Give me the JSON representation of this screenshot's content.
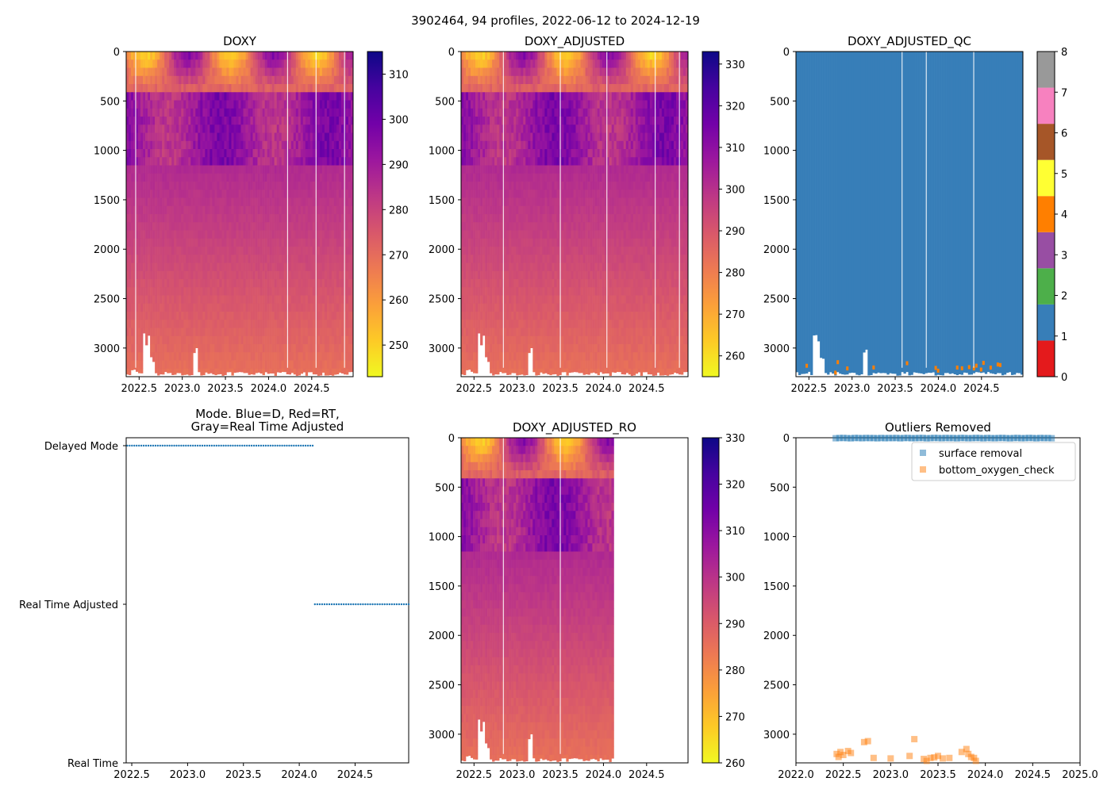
{
  "figure_title": "3902464, 94 profiles, 2022-06-12 to 2024-12-19",
  "chart_data": [
    {
      "id": "doxy",
      "type": "heatmap",
      "title": "DOXY",
      "x_ticks": [
        "2022.5",
        "2023.0",
        "2023.5",
        "2024.0",
        "2024.5"
      ],
      "x_tick_values": [
        2022.5,
        2023.0,
        2023.5,
        2024.0,
        2024.5
      ],
      "xlim": [
        2022.35,
        2024.98
      ],
      "y_ticks": [
        "0",
        "500",
        "1000",
        "1500",
        "2000",
        "2500",
        "3000"
      ],
      "y_tick_values": [
        0,
        500,
        1000,
        1500,
        2000,
        2500,
        3000
      ],
      "ylim": [
        3290,
        0
      ],
      "colormap": "plasma_r",
      "colorbar_ticks": [
        "250",
        "260",
        "270",
        "280",
        "290",
        "300",
        "310"
      ],
      "colorbar_tick_values": [
        250,
        260,
        270,
        280,
        290,
        300,
        310
      ],
      "colorbar_range": [
        243,
        315
      ],
      "data_end": 2024.98,
      "gap_years": [
        2022.46,
        2024.22,
        2024.55,
        2024.88
      ]
    },
    {
      "id": "doxy_adjusted",
      "type": "heatmap",
      "title": "DOXY_ADJUSTED",
      "x_ticks": [
        "2022.5",
        "2023.0",
        "2023.5",
        "2024.0",
        "2024.5"
      ],
      "x_tick_values": [
        2022.5,
        2023.0,
        2023.5,
        2024.0,
        2024.5
      ],
      "xlim": [
        2022.35,
        2024.98
      ],
      "y_ticks": [
        "0",
        "500",
        "1000",
        "1500",
        "2000",
        "2500",
        "3000"
      ],
      "y_tick_values": [
        0,
        500,
        1000,
        1500,
        2000,
        2500,
        3000
      ],
      "ylim": [
        3290,
        0
      ],
      "colormap": "plasma_r",
      "colorbar_ticks": [
        "260",
        "270",
        "280",
        "290",
        "300",
        "310",
        "320",
        "330"
      ],
      "colorbar_tick_values": [
        260,
        270,
        280,
        290,
        300,
        310,
        320,
        330
      ],
      "colorbar_range": [
        255,
        333
      ],
      "data_end": 2024.98,
      "gap_years": [
        2022.84,
        2023.5,
        2024.04,
        2024.6,
        2024.88
      ]
    },
    {
      "id": "doxy_adjusted_qc",
      "type": "heatmap",
      "title": "DOXY_ADJUSTED_QC",
      "x_ticks": [
        "2022.5",
        "2023.0",
        "2023.5",
        "2024.0",
        "2024.5"
      ],
      "x_tick_values": [
        2022.5,
        2023.0,
        2023.5,
        2024.0,
        2024.5
      ],
      "xlim": [
        2022.35,
        2024.98
      ],
      "y_ticks": [
        "0",
        "500",
        "1000",
        "1500",
        "2000",
        "2500",
        "3000"
      ],
      "y_tick_values": [
        0,
        500,
        1000,
        1500,
        2000,
        2500,
        3000
      ],
      "ylim": [
        3290,
        0
      ],
      "qc_colors": [
        "#e41a1c",
        "#377eb8",
        "#4daf4a",
        "#984ea3",
        "#ff7f00",
        "#ffff33",
        "#a65628",
        "#f781bf",
        "#999999"
      ],
      "colorbar_ticks": [
        "0",
        "1",
        "2",
        "3",
        "4",
        "5",
        "6",
        "7",
        "8"
      ],
      "colorbar_tick_values": [
        0,
        1,
        2,
        3,
        4,
        5,
        6,
        7,
        8
      ],
      "colorbar_range": [
        0,
        8
      ],
      "dominant_flag": 1,
      "gap_years": [
        2023.58,
        2023.86,
        2024.41
      ]
    },
    {
      "id": "mode",
      "type": "scatter",
      "title_lines": [
        "Mode. Blue=D, Red=RT,",
        "Gray=Real Time Adjusted"
      ],
      "x_ticks": [
        "2022.5",
        "2023.0",
        "2023.5",
        "2024.0",
        "2024.5"
      ],
      "x_tick_values": [
        2022.5,
        2023.0,
        2023.5,
        2024.0,
        2024.5
      ],
      "xlim": [
        2022.45,
        2024.98
      ],
      "y_ticks": [
        "Delayed Mode",
        "Real Time Adjusted",
        "Real Time"
      ],
      "y_tick_values": [
        2,
        1,
        0
      ],
      "ylim": [
        0,
        2.05
      ],
      "series": [
        {
          "name": "Delayed Mode",
          "level": 2,
          "x_range": [
            2022.46,
            2024.12
          ],
          "count": 80
        },
        {
          "name": "Real Time Adjusted",
          "level": 1,
          "x_range": [
            2024.14,
            2024.98
          ],
          "count": 40
        }
      ],
      "color": "#1f77b4"
    },
    {
      "id": "doxy_adjusted_ro",
      "type": "heatmap",
      "title": "DOXY_ADJUSTED_RO",
      "x_ticks": [
        "2022.5",
        "2023.0",
        "2023.5",
        "2024.0",
        "2024.5"
      ],
      "x_tick_values": [
        2022.5,
        2023.0,
        2023.5,
        2024.0,
        2024.5
      ],
      "xlim": [
        2022.35,
        2024.98
      ],
      "y_ticks": [
        "0",
        "500",
        "1000",
        "1500",
        "2000",
        "2500",
        "3000"
      ],
      "y_tick_values": [
        0,
        500,
        1000,
        1500,
        2000,
        2500,
        3000
      ],
      "ylim": [
        3290,
        0
      ],
      "colormap": "plasma_r",
      "colorbar_ticks": [
        "260",
        "270",
        "280",
        "290",
        "300",
        "310",
        "320",
        "330"
      ],
      "colorbar_tick_values": [
        260,
        270,
        280,
        290,
        300,
        310,
        320,
        330
      ],
      "colorbar_range": [
        260,
        330
      ],
      "data_end": 2024.12,
      "gap_years": [
        2022.84,
        2023.5
      ]
    },
    {
      "id": "outliers",
      "type": "scatter",
      "title": "Outliers Removed",
      "x_ticks": [
        "2022.0",
        "2022.5",
        "2023.0",
        "2023.5",
        "2024.0",
        "2024.5",
        "2025.0"
      ],
      "x_tick_values": [
        2022.0,
        2022.5,
        2023.0,
        2023.5,
        2024.0,
        2024.5,
        2025.0
      ],
      "xlim": [
        2022.0,
        2025.0
      ],
      "y_ticks": [
        "0",
        "500",
        "1000",
        "1500",
        "2000",
        "2500",
        "3000"
      ],
      "y_tick_values": [
        0,
        500,
        1000,
        1500,
        2000,
        2500,
        3000
      ],
      "ylim": [
        3290,
        0
      ],
      "legend": [
        "surface removal",
        "bottom_oxygen_check"
      ],
      "legend_position": "top-right",
      "series": [
        {
          "name": "surface removal",
          "color": "#1f77b4",
          "x": [
            2022.42,
            2022.46,
            2022.5,
            2022.54,
            2022.58,
            2022.62,
            2022.66,
            2022.7,
            2022.74,
            2022.78,
            2022.82,
            2022.86,
            2022.9,
            2022.94,
            2022.98,
            2023.02,
            2023.06,
            2023.1,
            2023.14,
            2023.18,
            2023.22,
            2023.26,
            2023.3,
            2023.34,
            2023.38,
            2023.42,
            2023.46,
            2023.5,
            2023.54,
            2023.58,
            2023.62,
            2023.66,
            2023.7,
            2023.74,
            2023.78,
            2023.82,
            2023.86,
            2023.9,
            2023.94,
            2023.98,
            2024.02,
            2024.06,
            2024.1,
            2024.14,
            2024.18,
            2024.22,
            2024.26,
            2024.3,
            2024.34,
            2024.38,
            2024.42,
            2024.46,
            2024.5,
            2024.54,
            2024.58,
            2024.62,
            2024.66,
            2024.7
          ],
          "y": [
            5,
            3,
            2,
            4,
            6,
            2,
            3,
            5,
            2,
            4,
            3,
            6,
            2,
            5,
            3,
            4,
            2,
            6,
            3,
            2,
            5,
            4,
            3,
            2,
            6,
            4,
            2,
            3,
            5,
            2,
            4,
            3,
            6,
            2,
            3,
            5,
            4,
            2,
            3,
            6,
            2,
            4,
            5,
            3,
            2,
            4,
            6,
            3,
            2,
            5,
            4,
            2,
            3,
            6,
            2,
            4,
            3,
            5
          ]
        },
        {
          "name": "bottom_oxygen_check",
          "color": "#ff7f0e",
          "x": [
            2022.43,
            2022.45,
            2022.47,
            2022.5,
            2022.55,
            2022.58,
            2022.72,
            2022.76,
            2022.82,
            2023.0,
            2023.2,
            2023.25,
            2023.35,
            2023.38,
            2023.42,
            2023.46,
            2023.5,
            2023.55,
            2023.62,
            2023.75,
            2023.8,
            2023.82,
            2023.85,
            2023.88,
            2023.9
          ],
          "y": [
            3200,
            3230,
            3180,
            3210,
            3170,
            3190,
            3080,
            3070,
            3240,
            3245,
            3220,
            3050,
            3250,
            3270,
            3240,
            3235,
            3220,
            3245,
            3240,
            3180,
            3150,
            3200,
            3230,
            3240,
            3270
          ]
        }
      ]
    }
  ]
}
